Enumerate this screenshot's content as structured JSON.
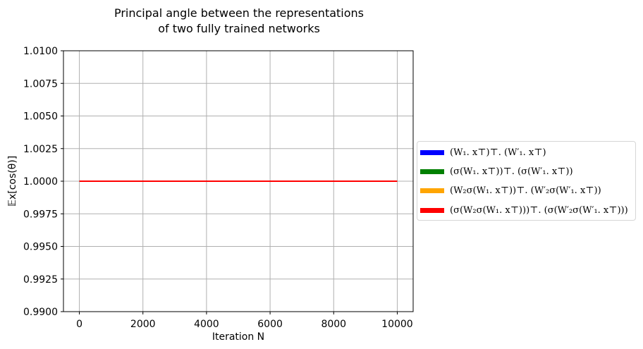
{
  "chart_data": {
    "type": "line",
    "title_line1": "Principal angle between the representations",
    "title_line2": "of  two fully trained networks",
    "xlabel": "Iteration N",
    "ylabel": "𝔼x[cos(θ)]",
    "xlim": [
      -500,
      10500
    ],
    "ylim": [
      0.99,
      1.01
    ],
    "xticks": [
      0,
      2000,
      4000,
      6000,
      8000,
      10000
    ],
    "xtick_labels": [
      "0",
      "2000",
      "4000",
      "6000",
      "8000",
      "10000"
    ],
    "yticks": [
      0.99,
      0.9925,
      0.995,
      0.9975,
      1.0,
      1.0025,
      1.005,
      1.0075,
      1.01
    ],
    "ytick_labels": [
      "0.9900",
      "0.9925",
      "0.9950",
      "0.9975",
      "1.0000",
      "1.0025",
      "1.0050",
      "1.0075",
      "1.0100"
    ],
    "grid": true,
    "legend_position": "outside right",
    "series": [
      {
        "name": "(W₁. x⊤)⊤. (W′₁. x⊤)",
        "color": "#0000ff",
        "x": [
          0,
          10000
        ],
        "y": [
          1.0,
          1.0
        ]
      },
      {
        "name": "(σ(W₁. x⊤))⊤. (σ(W′₁. x⊤))",
        "color": "#008000",
        "x": [
          0,
          10000
        ],
        "y": [
          1.0,
          1.0
        ]
      },
      {
        "name": "(W₂σ(W₁. x⊤))⊤. (W′₂σ(W′₁. x⊤))",
        "color": "#ffa500",
        "x": [
          0,
          10000
        ],
        "y": [
          1.0,
          1.0
        ]
      },
      {
        "name": "(σ(W₂σ(W₁. x⊤)))⊤. (σ(W′₂σ(W′₁. x⊤)))",
        "color": "#ff0000",
        "x": [
          0,
          10000
        ],
        "y": [
          1.0,
          1.0
        ]
      }
    ]
  }
}
